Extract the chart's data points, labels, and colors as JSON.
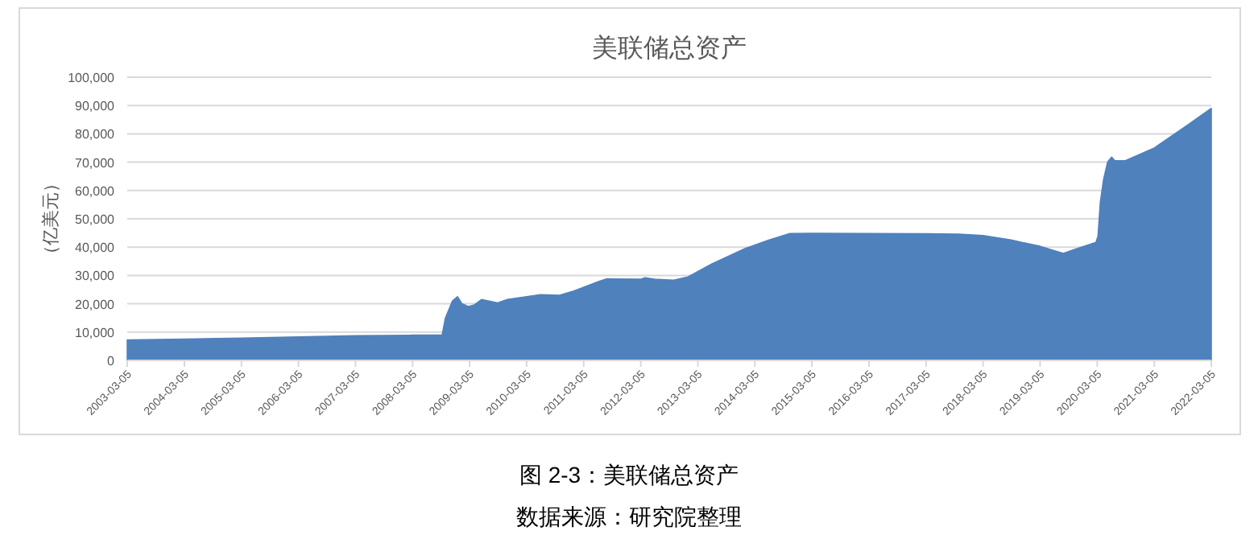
{
  "chart_data": {
    "type": "area",
    "title": "美联储总资产",
    "ylabel": "（亿美元）",
    "annotations": [
      "图 2-3：美联储总资产",
      "数据来源：研究院整理"
    ],
    "x": [
      "2003-03-05",
      "2004-03-05",
      "2005-03-05",
      "2006-03-05",
      "2007-03-05",
      "2008-03-05",
      "2008-09-10",
      "2008-10-01",
      "2008-11-15",
      "2008-12-17",
      "2009-01-15",
      "2009-02-25",
      "2009-04-01",
      "2009-05-20",
      "2009-07-01",
      "2009-09-01",
      "2009-11-01",
      "2010-03-05",
      "2010-06-01",
      "2010-10-01",
      "2011-01-01",
      "2011-06-15",
      "2011-08-01",
      "2012-03-05",
      "2012-04-01",
      "2012-06-01",
      "2012-10-01",
      "2013-01-01",
      "2013-06-01",
      "2014-01-01",
      "2014-06-01",
      "2014-10-15",
      "2015-03-05",
      "2016-03-05",
      "2017-03-05",
      "2017-10-01",
      "2018-03-05",
      "2018-09-01",
      "2019-03-05",
      "2019-08-01",
      "2019-10-01",
      "2020-02-26",
      "2020-03-10",
      "2020-03-25",
      "2020-04-15",
      "2020-05-10",
      "2020-06-05",
      "2020-06-25",
      "2020-09-01",
      "2021-03-05",
      "2021-10-01",
      "2022-03-05"
    ],
    "series": [
      {
        "color": "#4f81bd",
        "values": [
          7200,
          7500,
          7900,
          8300,
          8700,
          8900,
          9000,
          15000,
          21000,
          22500,
          20000,
          19000,
          19500,
          21500,
          21000,
          20300,
          21500,
          22500,
          23200,
          23000,
          24500,
          28000,
          28800,
          28700,
          29200,
          28700,
          28300,
          29500,
          34000,
          39500,
          42500,
          44800,
          44900,
          44800,
          44700,
          44600,
          44100,
          42500,
          40300,
          37800,
          39000,
          41700,
          44000,
          56000,
          64000,
          70000,
          71800,
          70500,
          70500,
          75000,
          83000,
          89000
        ]
      }
    ],
    "xlim": [
      "2003-03-05",
      "2022-03-05"
    ],
    "xticks": [
      "2003-03-05",
      "2004-03-05",
      "2005-03-05",
      "2006-03-05",
      "2007-03-05",
      "2008-03-05",
      "2009-03-05",
      "2010-03-05",
      "2011-03-05",
      "2012-03-05",
      "2013-03-05",
      "2014-03-05",
      "2015-03-05",
      "2016-03-05",
      "2017-03-05",
      "2018-03-05",
      "2019-03-05",
      "2020-03-05",
      "2021-03-05",
      "2022-03-05"
    ],
    "ylim": [
      0,
      100000
    ],
    "yticks": [
      {
        "value": 0,
        "label": "0"
      },
      {
        "value": 10000,
        "label": "10,000"
      },
      {
        "value": 20000,
        "label": "20,000"
      },
      {
        "value": 30000,
        "label": "30,000"
      },
      {
        "value": 40000,
        "label": "40,000"
      },
      {
        "value": 50000,
        "label": "50,000"
      },
      {
        "value": 60000,
        "label": "60,000"
      },
      {
        "value": 70000,
        "label": "70,000"
      },
      {
        "value": 80000,
        "label": "80,000"
      },
      {
        "value": 90000,
        "label": "90,000"
      },
      {
        "value": 100000,
        "label": "100,000"
      }
    ],
    "grid": "y"
  }
}
